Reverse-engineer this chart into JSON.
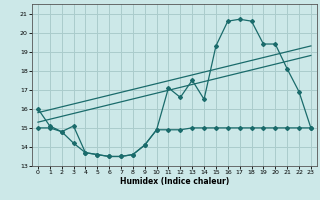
{
  "title": "",
  "xlabel": "Humidex (Indice chaleur)",
  "ylabel": "",
  "bg_color": "#cce8e8",
  "grid_color": "#aacccc",
  "line_color": "#1a6b6b",
  "xlim": [
    -0.5,
    23.5
  ],
  "ylim": [
    13,
    21.5
  ],
  "yticks": [
    13,
    14,
    15,
    16,
    17,
    18,
    19,
    20,
    21
  ],
  "xticks": [
    0,
    1,
    2,
    3,
    4,
    5,
    6,
    7,
    8,
    9,
    10,
    11,
    12,
    13,
    14,
    15,
    16,
    17,
    18,
    19,
    20,
    21,
    22,
    23
  ],
  "line1_x": [
    0,
    1,
    2,
    3,
    4,
    5,
    6,
    7,
    8,
    9,
    10,
    11,
    12,
    13,
    14,
    15,
    16,
    17,
    18,
    19,
    20,
    21,
    22,
    23
  ],
  "line1_y": [
    16.0,
    15.1,
    14.8,
    15.1,
    13.7,
    13.6,
    13.5,
    13.5,
    13.6,
    14.1,
    14.9,
    17.1,
    16.6,
    17.5,
    16.5,
    19.3,
    20.6,
    20.7,
    20.6,
    19.4,
    19.4,
    18.1,
    16.9,
    15.0
  ],
  "line2_x": [
    0,
    23
  ],
  "line2_y": [
    15.3,
    18.8
  ],
  "line3_x": [
    0,
    23
  ],
  "line3_y": [
    15.8,
    19.3
  ],
  "line4_x": [
    0,
    1,
    2,
    3,
    4,
    5,
    6,
    7,
    8,
    9,
    10,
    11,
    12,
    13,
    14,
    15,
    16,
    17,
    18,
    19,
    20,
    21,
    22,
    23
  ],
  "line4_y": [
    15.0,
    15.0,
    14.8,
    14.2,
    13.7,
    13.6,
    13.5,
    13.5,
    13.6,
    14.1,
    14.9,
    14.9,
    14.9,
    15.0,
    15.0,
    15.0,
    15.0,
    15.0,
    15.0,
    15.0,
    15.0,
    15.0,
    15.0,
    15.0
  ]
}
